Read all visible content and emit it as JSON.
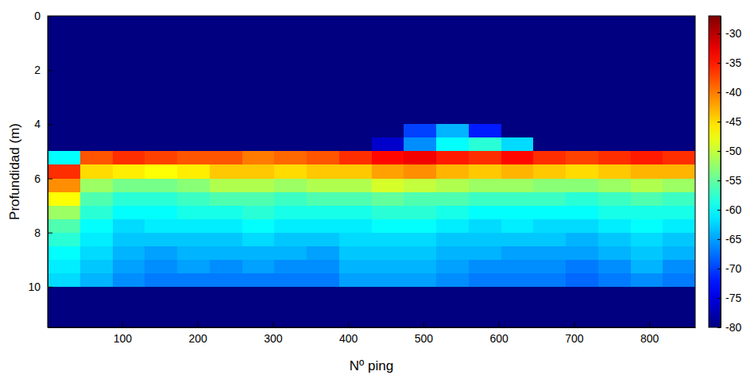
{
  "chart_data": {
    "type": "heatmap",
    "x_label": "Nº ping",
    "y_label": "Profundidad (m)",
    "x": [
      1,
      44,
      87,
      130,
      173,
      216,
      259,
      302,
      345,
      388,
      431,
      474,
      517,
      560,
      603,
      646,
      689,
      732,
      775,
      818,
      861
    ],
    "y": [
      0,
      4,
      4.5,
      5,
      5.5,
      6,
      6.5,
      7,
      7.5,
      8,
      8.5,
      9,
      9.5,
      10,
      11.5
    ],
    "cells": [
      [
        -80,
        -80,
        -80,
        -80,
        -80,
        -80,
        -80,
        -80,
        -80,
        -80,
        -80,
        -80,
        -80,
        -80,
        -80,
        -80,
        -80,
        -80,
        -80,
        -80
      ],
      [
        -80,
        -80,
        -80,
        -80,
        -80,
        -80,
        -80,
        -80,
        -80,
        -80,
        -80,
        -70,
        -64,
        -72,
        -80,
        -80,
        -80,
        -80,
        -80,
        -80
      ],
      [
        -80,
        -80,
        -80,
        -80,
        -80,
        -80,
        -80,
        -80,
        -80,
        -80,
        -76,
        -66,
        -60,
        -58,
        -62,
        -80,
        -80,
        -80,
        -80,
        -80
      ],
      [
        -60,
        -38,
        -36,
        -37,
        -38,
        -38,
        -40,
        -39,
        -38,
        -36,
        -34,
        -33,
        -35,
        -36,
        -34,
        -36,
        -37,
        -36,
        -35,
        -36
      ],
      [
        -36,
        -45,
        -46,
        -47,
        -46,
        -44,
        -44,
        -45,
        -44,
        -44,
        -42,
        -41,
        -43,
        -44,
        -43,
        -44,
        -45,
        -44,
        -43,
        -43
      ],
      [
        -41,
        -52,
        -54,
        -54,
        -53,
        -51,
        -51,
        -52,
        -51,
        -51,
        -49,
        -50,
        -51,
        -52,
        -52,
        -53,
        -53,
        -52,
        -51,
        -52
      ],
      [
        -47,
        -56,
        -58,
        -58,
        -57,
        -56,
        -56,
        -57,
        -56,
        -56,
        -55,
        -56,
        -56,
        -57,
        -57,
        -57,
        -58,
        -57,
        -56,
        -57
      ],
      [
        -52,
        -58,
        -60,
        -60,
        -59,
        -59,
        -58,
        -59,
        -59,
        -59,
        -58,
        -58,
        -59,
        -60,
        -60,
        -60,
        -60,
        -59,
        -59,
        -59
      ],
      [
        -56,
        -60,
        -62,
        -61,
        -61,
        -61,
        -60,
        -61,
        -61,
        -61,
        -60,
        -60,
        -61,
        -62,
        -61,
        -62,
        -62,
        -61,
        -60,
        -61
      ],
      [
        -58,
        -61,
        -63,
        -63,
        -63,
        -63,
        -62,
        -63,
        -63,
        -62,
        -62,
        -62,
        -63,
        -63,
        -63,
        -63,
        -64,
        -63,
        -62,
        -63
      ],
      [
        -60,
        -62,
        -64,
        -65,
        -64,
        -64,
        -64,
        -64,
        -65,
        -63,
        -63,
        -63,
        -64,
        -64,
        -65,
        -65,
        -65,
        -64,
        -63,
        -64
      ],
      [
        -61,
        -63,
        -65,
        -66,
        -65,
        -66,
        -65,
        -66,
        -66,
        -64,
        -64,
        -64,
        -65,
        -66,
        -66,
        -66,
        -67,
        -66,
        -64,
        -66
      ],
      [
        -62,
        -64,
        -66,
        -67,
        -67,
        -67,
        -67,
        -67,
        -67,
        -65,
        -65,
        -65,
        -66,
        -67,
        -67,
        -67,
        -68,
        -67,
        -66,
        -67
      ],
      [
        -80,
        -80,
        -80,
        -80,
        -80,
        -80,
        -80,
        -80,
        -80,
        -80,
        -80,
        -80,
        -80,
        -80,
        -80,
        -80,
        -80,
        -80,
        -80,
        -80
      ]
    ],
    "xlim": [
      1,
      861
    ],
    "ylim": [
      0,
      11.5
    ],
    "xticks": [
      100,
      200,
      300,
      400,
      500,
      600,
      700,
      800
    ],
    "yticks": [
      0,
      2,
      4,
      6,
      8,
      10
    ],
    "colorbar": {
      "range": [
        -80,
        -27
      ],
      "ticks": [
        -30,
        -35,
        -40,
        -45,
        -50,
        -55,
        -60,
        -65,
        -70,
        -75,
        -80
      ]
    }
  }
}
